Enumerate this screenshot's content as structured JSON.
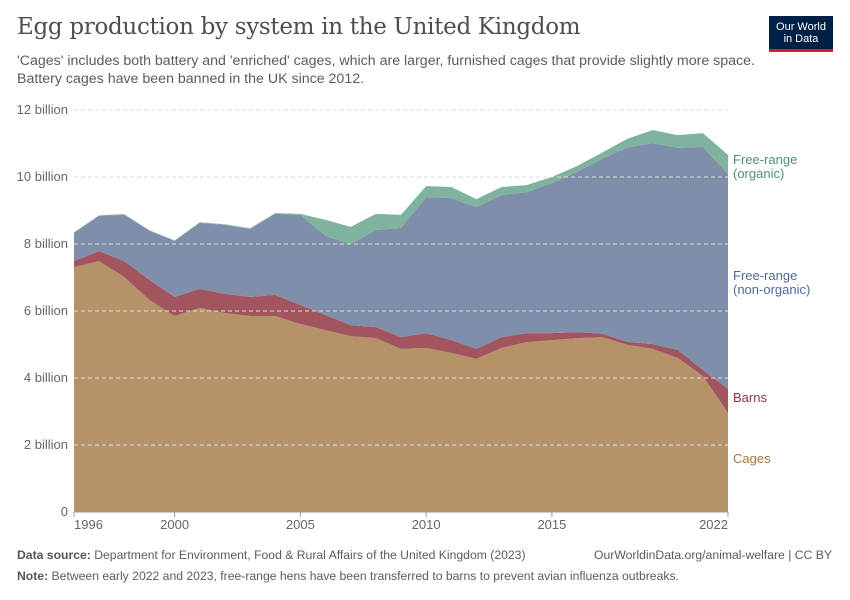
{
  "header": {
    "title": "Egg production by system in the United Kingdom",
    "subtitle": "'Cages' includes both battery and 'enriched' cages, which are larger, furnished cages that provide slightly more space. Battery cages have been banned in the UK since 2012.",
    "logo": "Our World in Data"
  },
  "chart_data": {
    "type": "area",
    "stacked": true,
    "x": [
      1996,
      1997,
      1998,
      1999,
      2000,
      2001,
      2002,
      2003,
      2004,
      2005,
      2006,
      2007,
      2008,
      2009,
      2010,
      2011,
      2012,
      2013,
      2014,
      2015,
      2016,
      2017,
      2018,
      2019,
      2020,
      2021,
      2022
    ],
    "series": [
      {
        "name": "Cages",
        "color": "#b59267",
        "label_color": "#a3763f",
        "values": [
          7.31,
          7.49,
          7.01,
          6.33,
          5.85,
          6.09,
          5.94,
          5.85,
          5.85,
          5.61,
          5.43,
          5.25,
          5.19,
          4.87,
          4.9,
          4.75,
          4.57,
          4.9,
          5.07,
          5.13,
          5.19,
          5.22,
          4.99,
          4.87,
          4.6,
          4.06,
          2.96
        ]
      },
      {
        "name": "Barns",
        "color": "#a2555f",
        "label_color": "#8c3540",
        "values": [
          0.18,
          0.3,
          0.48,
          0.6,
          0.57,
          0.57,
          0.57,
          0.57,
          0.63,
          0.57,
          0.45,
          0.33,
          0.33,
          0.35,
          0.44,
          0.38,
          0.3,
          0.32,
          0.27,
          0.21,
          0.18,
          0.1,
          0.09,
          0.14,
          0.24,
          0.18,
          0.71
        ]
      },
      {
        "name": "Free-range (non-organic)",
        "label_lines": [
          "Free-range",
          "(non-organic)"
        ],
        "color": "#7f8ea9",
        "label_color": "#4c6a9c",
        "values": [
          0.84,
          1.05,
          1.38,
          1.46,
          1.67,
          1.97,
          2.06,
          2.03,
          2.42,
          2.69,
          2.36,
          2.42,
          2.9,
          3.26,
          4.06,
          4.24,
          4.23,
          4.24,
          4.21,
          4.48,
          4.78,
          5.23,
          5.8,
          6.0,
          6.03,
          6.66,
          6.42
        ]
      },
      {
        "name": "Free-range (organic)",
        "label_lines": [
          "Free-range",
          "(organic)"
        ],
        "color": "#7fb39f",
        "label_color": "#4c8f75",
        "values": [
          0.02,
          0.02,
          0.02,
          0.02,
          0.02,
          0.02,
          0.02,
          0.02,
          0.02,
          0.03,
          0.48,
          0.51,
          0.48,
          0.39,
          0.33,
          0.33,
          0.24,
          0.24,
          0.21,
          0.18,
          0.18,
          0.18,
          0.26,
          0.39,
          0.38,
          0.41,
          0.57
        ]
      }
    ],
    "ylim": [
      0,
      12
    ],
    "yticks": [
      {
        "v": 0,
        "label": "0"
      },
      {
        "v": 2,
        "label": "2 billion"
      },
      {
        "v": 4,
        "label": "4 billion"
      },
      {
        "v": 6,
        "label": "6 billion"
      },
      {
        "v": 8,
        "label": "8 billion"
      },
      {
        "v": 10,
        "label": "10 billion"
      },
      {
        "v": 12,
        "label": "12 billion"
      }
    ],
    "xticks": [
      1996,
      2000,
      2005,
      2010,
      2015,
      2022
    ],
    "grid": "horizontal dashed",
    "legend": "right inline labels"
  },
  "footer": {
    "source_label": "Data source:",
    "source": "Department for Environment, Food & Rural Affairs of the United Kingdom (2023)",
    "url": "OurWorldinData.org/animal-welfare | CC BY",
    "note_label": "Note:",
    "note": "Between early 2022 and 2023, free-range hens have been transferred to barns to prevent avian influenza outbreaks."
  }
}
